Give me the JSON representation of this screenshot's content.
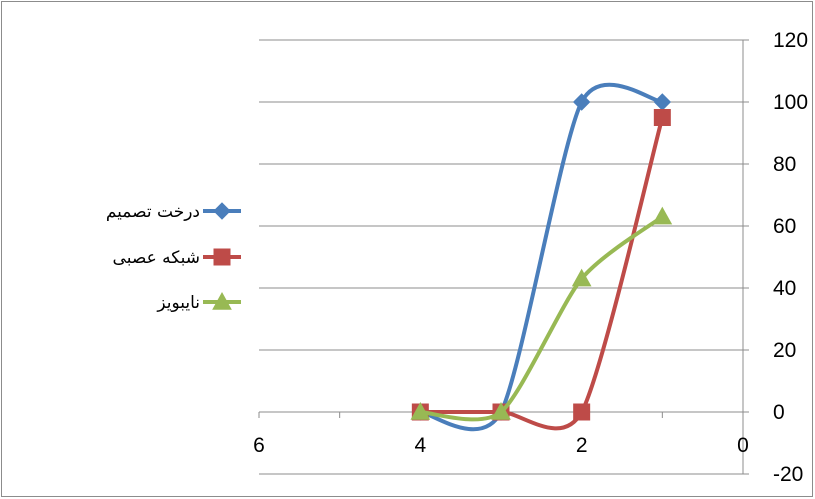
{
  "chart_data": {
    "type": "line",
    "title": "",
    "xlabel": "",
    "ylabel": "",
    "x_reversed": true,
    "y_axis_side": "right",
    "xlim": [
      0,
      6
    ],
    "ylim": [
      -20,
      120
    ],
    "x_ticks": [
      6,
      4,
      2,
      0
    ],
    "y_ticks": [
      120,
      100,
      80,
      60,
      40,
      20,
      0,
      -20
    ],
    "grid": "horizontal",
    "legend_position": "left",
    "smooth": true,
    "series": [
      {
        "name": "درخت تصمیم",
        "color": "#4a7ebb",
        "marker": "diamond",
        "x": [
          4,
          3,
          2,
          1
        ],
        "values": [
          0,
          0,
          100,
          100
        ]
      },
      {
        "name": "شبکه عصبی",
        "color": "#be4b48",
        "marker": "square",
        "x": [
          4,
          3,
          2,
          1
        ],
        "values": [
          0,
          0,
          0,
          95
        ]
      },
      {
        "name": "نایبویز",
        "color": "#98b954",
        "marker": "triangle",
        "x": [
          4,
          3,
          2,
          1
        ],
        "values": [
          0,
          0,
          43,
          63
        ]
      }
    ]
  }
}
